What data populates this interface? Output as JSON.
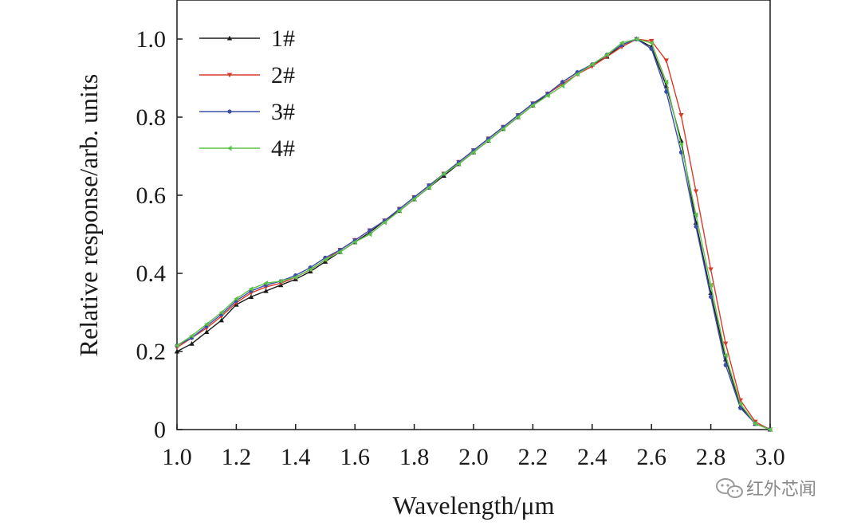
{
  "chart_data": {
    "type": "line",
    "title": "",
    "xlabel": "Wavelength/μm",
    "ylabel": "Relative response/arb. units",
    "xlim": [
      1.0,
      3.0
    ],
    "ylim": [
      0,
      1.1
    ],
    "x_ticks": [
      1.0,
      1.2,
      1.4,
      1.6,
      1.8,
      2.0,
      2.2,
      2.4,
      2.6,
      2.8,
      3.0
    ],
    "x_tick_labels": [
      "1.0",
      "1.2",
      "1.4",
      "1.6",
      "1.8",
      "2.0",
      "2.2",
      "2.4",
      "2.6",
      "2.8",
      "3.0"
    ],
    "y_ticks": [
      0,
      0.2,
      0.4,
      0.6,
      0.8,
      1.0
    ],
    "y_tick_labels": [
      "0",
      "0.2",
      "0.4",
      "0.6",
      "0.8",
      "1.0"
    ],
    "grid": false,
    "legend_position": "top-left",
    "x": [
      1.0,
      1.05,
      1.1,
      1.15,
      1.2,
      1.25,
      1.3,
      1.35,
      1.4,
      1.45,
      1.5,
      1.55,
      1.6,
      1.65,
      1.7,
      1.75,
      1.8,
      1.85,
      1.9,
      1.95,
      2.0,
      2.05,
      2.1,
      2.15,
      2.2,
      2.25,
      2.3,
      2.35,
      2.4,
      2.45,
      2.5,
      2.55,
      2.6,
      2.65,
      2.7,
      2.75,
      2.8,
      2.85,
      2.9,
      2.95,
      3.0
    ],
    "series": [
      {
        "name": "1#",
        "color": "#1a1a1a",
        "marker": "triangle-up",
        "values": [
          0.2,
          0.22,
          0.25,
          0.28,
          0.32,
          0.34,
          0.355,
          0.37,
          0.385,
          0.405,
          0.43,
          0.455,
          0.48,
          0.505,
          0.535,
          0.56,
          0.59,
          0.62,
          0.65,
          0.68,
          0.71,
          0.74,
          0.77,
          0.8,
          0.83,
          0.86,
          0.89,
          0.915,
          0.935,
          0.955,
          0.985,
          1.0,
          0.98,
          0.88,
          0.74,
          0.53,
          0.35,
          0.18,
          0.06,
          0.015,
          0.0
        ]
      },
      {
        "name": "2#",
        "color": "#d93a2b",
        "marker": "triangle-down",
        "values": [
          0.21,
          0.235,
          0.26,
          0.29,
          0.325,
          0.35,
          0.365,
          0.375,
          0.39,
          0.41,
          0.435,
          0.46,
          0.485,
          0.51,
          0.535,
          0.565,
          0.595,
          0.625,
          0.655,
          0.685,
          0.715,
          0.745,
          0.775,
          0.805,
          0.835,
          0.86,
          0.885,
          0.91,
          0.93,
          0.955,
          0.98,
          1.0,
          0.995,
          0.945,
          0.805,
          0.61,
          0.41,
          0.22,
          0.075,
          0.02,
          0.0
        ]
      },
      {
        "name": "3#",
        "color": "#3b4fa8",
        "marker": "circle",
        "values": [
          0.215,
          0.235,
          0.265,
          0.295,
          0.33,
          0.355,
          0.37,
          0.38,
          0.395,
          0.415,
          0.44,
          0.46,
          0.485,
          0.51,
          0.535,
          0.565,
          0.595,
          0.625,
          0.655,
          0.685,
          0.715,
          0.745,
          0.775,
          0.805,
          0.835,
          0.86,
          0.89,
          0.915,
          0.935,
          0.96,
          0.985,
          1.0,
          0.975,
          0.865,
          0.71,
          0.52,
          0.34,
          0.165,
          0.055,
          0.015,
          0.0
        ]
      },
      {
        "name": "4#",
        "color": "#5cc04a",
        "marker": "triangle-left",
        "values": [
          0.215,
          0.24,
          0.27,
          0.3,
          0.335,
          0.36,
          0.375,
          0.38,
          0.39,
          0.41,
          0.435,
          0.455,
          0.48,
          0.5,
          0.53,
          0.56,
          0.59,
          0.62,
          0.655,
          0.68,
          0.71,
          0.74,
          0.77,
          0.8,
          0.83,
          0.855,
          0.88,
          0.91,
          0.935,
          0.96,
          0.99,
          1.0,
          0.99,
          0.89,
          0.73,
          0.55,
          0.37,
          0.19,
          0.065,
          0.015,
          0.0
        ]
      }
    ]
  },
  "watermark": {
    "text": "红外芯闻",
    "icon": "wechat-icon"
  }
}
